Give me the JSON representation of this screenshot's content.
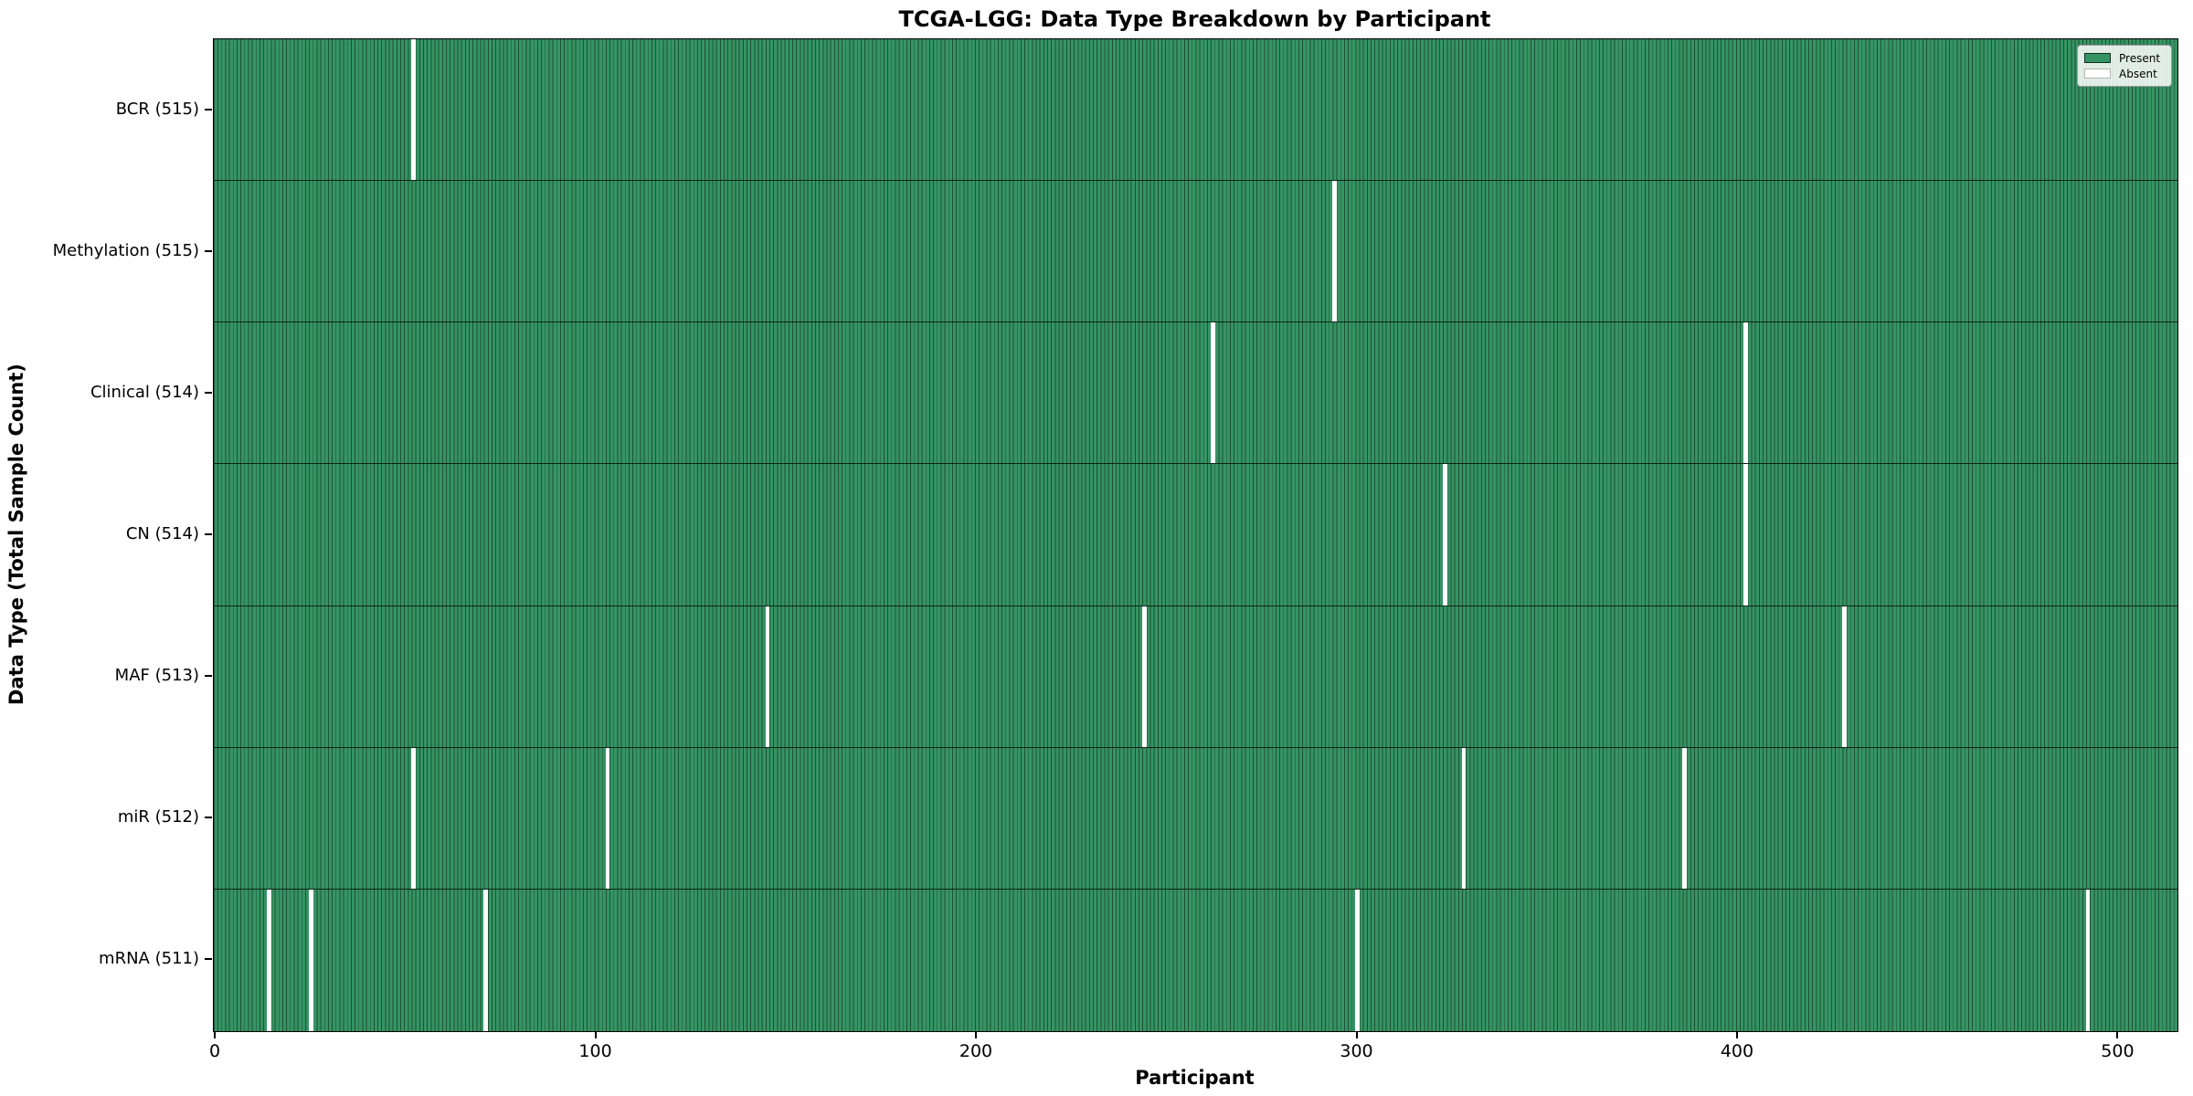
{
  "chart_data": {
    "type": "heatmap",
    "title": "TCGA-LGG: Data Type Breakdown by Participant",
    "xlabel": "Participant",
    "ylabel": "Data Type (Total Sample Count)",
    "x_ticks": [
      0,
      100,
      200,
      300,
      400,
      500
    ],
    "total_participants": 516,
    "rows": [
      {
        "data_type": "BCR",
        "label": "BCR (515)",
        "present_count": 515,
        "absent_participants": [
          52
        ]
      },
      {
        "data_type": "Methylation",
        "label": "Methylation (515)",
        "present_count": 515,
        "absent_participants": [
          294
        ]
      },
      {
        "data_type": "Clinical",
        "label": "Clinical (514)",
        "present_count": 514,
        "absent_participants": [
          262,
          402
        ]
      },
      {
        "data_type": "CN",
        "label": "CN (514)",
        "present_count": 514,
        "absent_participants": [
          323,
          402
        ]
      },
      {
        "data_type": "MAF",
        "label": "MAF (513)",
        "present_count": 513,
        "absent_participants": [
          145,
          244,
          428
        ]
      },
      {
        "data_type": "miR",
        "label": "miR (512)",
        "present_count": 512,
        "absent_participants": [
          52,
          103,
          328,
          386
        ]
      },
      {
        "data_type": "mRNA",
        "label": "mRNA (511)",
        "present_count": 511,
        "absent_participants": [
          14,
          25,
          71,
          300,
          492
        ]
      }
    ],
    "legend": [
      {
        "label": "Present",
        "color": "#359464",
        "edge": "#13301f"
      },
      {
        "label": "Absent",
        "color": "#ffffff",
        "edge": "#b5b5b5"
      }
    ],
    "legend_position": "upper right",
    "grid": false,
    "colors": {
      "present_fill": "#359464",
      "present_edge": "#1e5135",
      "absent": "#ffffff",
      "separator": "#0d2417",
      "spine": "#000000",
      "text": "#000000"
    }
  }
}
